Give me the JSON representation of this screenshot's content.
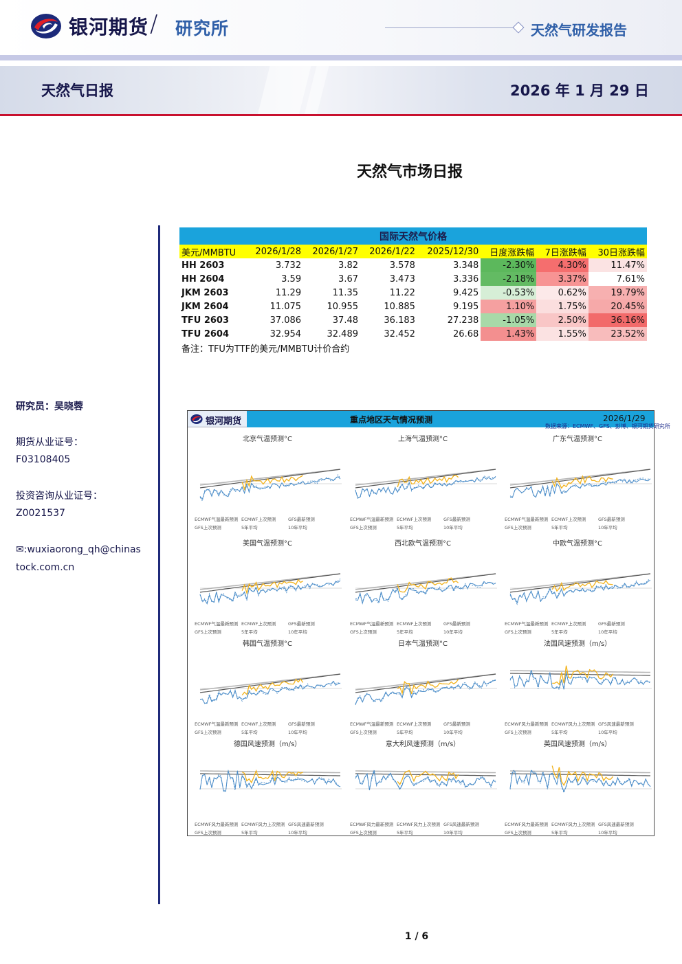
{
  "header": {
    "brand": "银河期货",
    "slash": "/",
    "department": "研究所",
    "report_type": "天然气研发报告",
    "daily_name": "天然气日报",
    "date": "2026 年 1 月 29 日"
  },
  "main_title": "天然气市场日报",
  "sidebar": {
    "researcher": "研究员：吴晓蓉",
    "license_label": "期货从业证号：",
    "license_no": "F03108405",
    "consult_label": "投资咨询从业证号：",
    "consult_no": "Z0021537",
    "email_line1": "✉:wuxiaorong_qh@chinas",
    "email_line2": "tock.com.cn"
  },
  "price_table": {
    "caption": "国际天然气价格",
    "columns": [
      "美元/MMBTU",
      "2026/1/28",
      "2026/1/27",
      "2026/1/22",
      "2025/12/30",
      "日度涨跌幅",
      "7日涨跌幅",
      "30日涨跌幅"
    ],
    "rows": [
      {
        "name": "HH 2603",
        "cells": [
          "3.732",
          "3.82",
          "3.578",
          "3.348",
          "-2.30%",
          "4.30%",
          "11.47%"
        ]
      },
      {
        "name": "HH 2604",
        "cells": [
          "3.59",
          "3.67",
          "3.473",
          "3.336",
          "-2.18%",
          "3.37%",
          "7.61%"
        ]
      },
      {
        "name": "JKM 2603",
        "cells": [
          "11.29",
          "11.35",
          "11.22",
          "9.425",
          "-0.53%",
          "0.62%",
          "19.79%"
        ]
      },
      {
        "name": "JKM 2604",
        "cells": [
          "11.075",
          "10.955",
          "10.885",
          "9.195",
          "1.10%",
          "1.75%",
          "20.45%"
        ]
      },
      {
        "name": "TFU 2603",
        "cells": [
          "37.086",
          "37.48",
          "36.183",
          "27.238",
          "-1.05%",
          "2.50%",
          "36.16%"
        ]
      },
      {
        "name": "TFU 2604",
        "cells": [
          "32.954",
          "32.489",
          "32.452",
          "26.68",
          "1.43%",
          "1.55%",
          "23.52%"
        ]
      }
    ],
    "change_colors": [
      [
        "#5cb85c",
        "#f56e6e",
        "#fbe3e3"
      ],
      [
        "#63bb63",
        "#f79494",
        "#ffffff"
      ],
      [
        "#d6eed6",
        "#fce9e9",
        "#f7b0b0"
      ],
      [
        "#f5a0a0",
        "#fbdede",
        "#f6a9a9"
      ],
      [
        "#a8d9a8",
        "#f9c6c6",
        "#f26a6a"
      ],
      [
        "#f38f8f",
        "#fbe2e2",
        "#f8bcbc"
      ]
    ],
    "note": "备注：TFU为TTF的美元/MMBTU计价合约"
  },
  "weather": {
    "brand": "银河期货",
    "title": "重点地区天气情况预测",
    "date": "2026/1/29",
    "source": "数据来源：ECMWF、GFS、彭博、银河期货研究所",
    "charts": [
      {
        "title": "北京气温预测°C",
        "legend": [
          "ECMWF气温最新预测",
          "ECMWF上次预测",
          "GFS最新预测",
          "GFS上次预测",
          "5年平均",
          "10年平均"
        ]
      },
      {
        "title": "上海气温预测°C",
        "legend": [
          "ECMWF气温最新预测",
          "ECMWF上次预测",
          "GFS最新预测",
          "GFS上次预测",
          "5年平均",
          "10年平均"
        ]
      },
      {
        "title": "广东气温预测°C",
        "legend": [
          "ECMWF气温最新预测",
          "ECMWF上次预测",
          "GFS最新预测",
          "GFS上次预测",
          "5年平均",
          "10年平均"
        ]
      },
      {
        "title": "美国气温预测°C",
        "legend": [
          "ECMWF气温最新预测",
          "ECMWF上次预测",
          "GFS最新预测",
          "GFS上次预测",
          "5年平均",
          "10年平均"
        ]
      },
      {
        "title": "西北欧气温预测°C",
        "legend": [
          "ECMWF气温最新预测",
          "ECMWF上次预测",
          "GFS最新预测",
          "GFS上次预测",
          "5年平均",
          "10年平均"
        ]
      },
      {
        "title": "中欧气温预测°C",
        "legend": [
          "ECMWF气温最新预测",
          "ECMWF上次预测",
          "GFS最新预测",
          "GFS上次预测",
          "5年平均",
          "10年平均"
        ]
      },
      {
        "title": "韩国气温预测°C",
        "legend": [
          "ECMWF气温最新预测",
          "ECMWF上次预测",
          "GFS最新预测",
          "GFS上次预测",
          "5年平均",
          "10年平均"
        ]
      },
      {
        "title": "日本气温预测°C",
        "legend": [
          "ECMWF气温最新预测",
          "ECMWF上次预测",
          "GFS最新预测",
          "GFS上次预测",
          "5年平均",
          "10年平均"
        ]
      },
      {
        "title": "法国风速预测（m/s）",
        "legend": [
          "ECMWF风力最新预测",
          "ECMWF风力上次预测",
          "GFS风速最新预测",
          "GFS上次预测",
          "5年平均",
          "10年平均"
        ]
      },
      {
        "title": "德国风速预测（m/s）",
        "legend": [
          "ECMWF风力最新预测",
          "ECMWF风力上次预测",
          "GFS风速最新预测",
          "GFS上次预测",
          "5年平均",
          "10年平均"
        ]
      },
      {
        "title": "意大利风速预测（m/s）",
        "legend": [
          "ECMWF风力最新预测",
          "ECMWF风力上次预测",
          "GFS风速最新预测",
          "GFS上次预测",
          "5年平均",
          "10年平均"
        ]
      },
      {
        "title": "英国风速预测（m/s）",
        "legend": [
          "ECMWF风力最新预测",
          "ECMWF风力上次预测",
          "GFS风速最新预测",
          "GFS上次预测",
          "5年平均",
          "10年平均"
        ]
      }
    ],
    "line_colors": {
      "ecmwf": "#4a8cc8",
      "ecmwf_prev": "#4a8cc8",
      "gfs": "#f2b21b",
      "avg5": "#555555",
      "avg10": "#b5b5b5"
    }
  },
  "page_number": "1 / 6"
}
